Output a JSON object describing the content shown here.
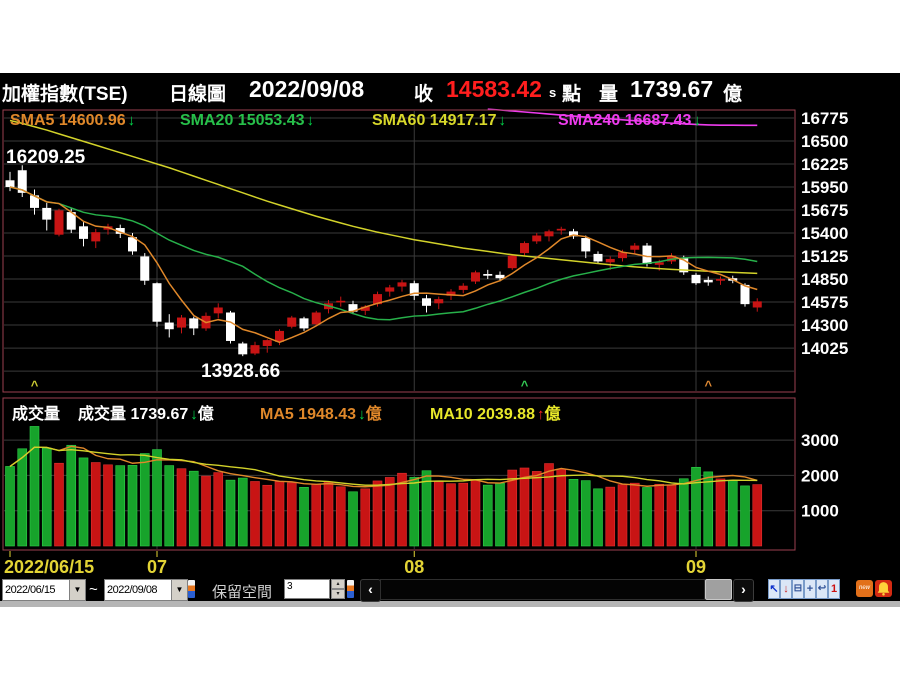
{
  "header": {
    "title": "加權指數(TSE)",
    "chart_type": "日線圖",
    "date": "2022/09/08",
    "close_label": "收",
    "close_value": "14583.42",
    "close_suffix": "s",
    "points_label": "點",
    "volume_label": "量",
    "volume_value": "1739.67",
    "volume_unit": "億"
  },
  "price_legend": {
    "sma5_label": "SMA5 14600.96",
    "sma20_label": "SMA20 15053.43",
    "sma60_label": "SMA60 14917.17",
    "sma240_label": "SMA240 16687.43",
    "down_arrow": "↓"
  },
  "annotations": {
    "period_high": "16209.25",
    "period_low": "13928.66"
  },
  "volume_legend": {
    "pane_title": "成交量",
    "volume_label": "成交量 1739.67",
    "ma5_label": "MA5 1948.43",
    "ma10_label": "MA10 2039.88",
    "unit": "億",
    "down_arrow": "↓",
    "up_arrow": "↑"
  },
  "toolbar": {
    "date_from": "2022/06/15",
    "range_separator": "~",
    "date_to": "2022/09/08",
    "reserve_label": "保留空間",
    "reserve_value": "3",
    "icons": {
      "dropdown": "▼",
      "spin_up": "▴",
      "spin_down": "▾",
      "scroll_left": "‹",
      "scroll_right": "›",
      "cursor": "↖",
      "download": "↓",
      "zoom_out": "⊟",
      "zoom_in": "+",
      "undo": "↩",
      "page_one": "1",
      "new_badge": "new"
    }
  },
  "colors": {
    "up": "#c81414",
    "down_body": "#ffffff",
    "vol_up": "#c81414",
    "vol_down": "#17a32b",
    "sma5": "#e0882a",
    "sma20": "#27b04a",
    "sma60": "#d2d22a",
    "sma240": "#ee3cee",
    "axis_text": "#ffffff",
    "x_label": "#e3d435",
    "pane_border": "#9b4050",
    "grid": "#3a3a3a",
    "close_red": "#ff1e1e",
    "arrow_up": "#ff2222",
    "arrow_down": "#00d84a"
  },
  "chart_data": {
    "type": "candlestick+volume",
    "title": "加權指數(TSE) 日線圖 2022/06/15 ~ 2022/09/08",
    "price_axis": {
      "ticks": [
        16775,
        16500,
        16225,
        15950,
        15675,
        15400,
        15125,
        14850,
        14575,
        14300,
        14025
      ],
      "grid_max": 16775,
      "grid_min": 13750,
      "step": 275
    },
    "volume_axis": {
      "ticks": [
        3000,
        2000,
        1000
      ],
      "unit": "億"
    },
    "x_ticks": [
      {
        "label": "2022/06/15",
        "index": 0
      },
      {
        "label": "07",
        "index": 12
      },
      {
        "label": "08",
        "index": 33
      },
      {
        "label": "09",
        "index": 56
      }
    ],
    "period_high": 16209.25,
    "period_low": 13928.66,
    "candles": [
      [
        16030,
        16130,
        15900,
        15950,
        2254
      ],
      [
        16150,
        16209.25,
        15830,
        15880,
        2754
      ],
      [
        15850,
        15920,
        15620,
        15700,
        3387
      ],
      [
        15700,
        15760,
        15430,
        15560,
        2776
      ],
      [
        15380,
        15690,
        15360,
        15670,
        2345
      ],
      [
        15650,
        15700,
        15400,
        15440,
        2854
      ],
      [
        15480,
        15530,
        15240,
        15330,
        2496
      ],
      [
        15300,
        15450,
        15220,
        15410,
        2365
      ],
      [
        15440,
        15510,
        15380,
        15480,
        2300
      ],
      [
        15460,
        15500,
        15340,
        15390,
        2277
      ],
      [
        15350,
        15400,
        15140,
        15180,
        2285
      ],
      [
        15120,
        15160,
        14780,
        14830,
        2620
      ],
      [
        14800,
        14810,
        14280,
        14340,
        2731
      ],
      [
        14330,
        14430,
        14152,
        14250,
        2278
      ],
      [
        14270,
        14420,
        14200,
        14390,
        2190
      ],
      [
        14380,
        14400,
        14180,
        14260,
        2120
      ],
      [
        14260,
        14450,
        14230,
        14410,
        1980
      ],
      [
        14440,
        14560,
        14380,
        14510,
        2080
      ],
      [
        14450,
        14470,
        14080,
        14110,
        1866
      ],
      [
        14080,
        14100,
        13928.66,
        13950,
        1925
      ],
      [
        13960,
        14100,
        13940,
        14060,
        1828
      ],
      [
        14050,
        14130,
        13970,
        14120,
        1721
      ],
      [
        14100,
        14250,
        14060,
        14230,
        1823
      ],
      [
        14280,
        14410,
        14260,
        14390,
        1789
      ],
      [
        14380,
        14400,
        14230,
        14260,
        1662
      ],
      [
        14310,
        14470,
        14290,
        14450,
        1748
      ],
      [
        14490,
        14600,
        14440,
        14560,
        1812
      ],
      [
        14570,
        14640,
        14520,
        14590,
        1678
      ],
      [
        14550,
        14590,
        14430,
        14460,
        1536
      ],
      [
        14470,
        14540,
        14420,
        14520,
        1620
      ],
      [
        14550,
        14700,
        14520,
        14670,
        1843
      ],
      [
        14700,
        14780,
        14640,
        14750,
        1942
      ],
      [
        14760,
        14840,
        14700,
        14810,
        2062
      ],
      [
        14800,
        14830,
        14600,
        14650,
        1944
      ],
      [
        14620,
        14660,
        14450,
        14530,
        2132
      ],
      [
        14560,
        14640,
        14490,
        14610,
        1828
      ],
      [
        14650,
        14730,
        14600,
        14700,
        1765
      ],
      [
        14720,
        14800,
        14680,
        14770,
        1780
      ],
      [
        14820,
        14950,
        14790,
        14930,
        1862
      ],
      [
        14910,
        14960,
        14850,
        14890,
        1725
      ],
      [
        14900,
        14940,
        14820,
        14860,
        1779
      ],
      [
        14980,
        15150,
        14960,
        15130,
        2152
      ],
      [
        15160,
        15300,
        15120,
        15280,
        2210
      ],
      [
        15300,
        15400,
        15270,
        15370,
        2113
      ],
      [
        15360,
        15440,
        15300,
        15420,
        2336
      ],
      [
        15430,
        15475,
        15380,
        15450,
        2180
      ],
      [
        15420,
        15450,
        15330,
        15360,
        1890
      ],
      [
        15340,
        15370,
        15100,
        15180,
        1852
      ],
      [
        15150,
        15180,
        15030,
        15060,
        1620
      ],
      [
        15050,
        15120,
        14960,
        15090,
        1668
      ],
      [
        15100,
        15200,
        15060,
        15170,
        1738
      ],
      [
        15200,
        15280,
        15150,
        15250,
        1780
      ],
      [
        15250,
        15280,
        15000,
        15030,
        1658
      ],
      [
        15020,
        15080,
        14950,
        15050,
        1749
      ],
      [
        15060,
        15160,
        15030,
        15130,
        1728
      ],
      [
        15100,
        15130,
        14900,
        14930,
        1905
      ],
      [
        14900,
        14920,
        14780,
        14800,
        2230
      ],
      [
        14840,
        14880,
        14770,
        14810,
        2100
      ],
      [
        14830,
        14880,
        14780,
        14850,
        1900
      ],
      [
        14860,
        14890,
        14800,
        14830,
        1850
      ],
      [
        14780,
        14800,
        14520,
        14550,
        1703
      ],
      [
        14510,
        14620,
        14460,
        14583.42,
        1739.67
      ]
    ],
    "sma60": [
      16745,
      16710,
      16670,
      16630,
      16585,
      16540,
      16495,
      16450,
      16405,
      16360,
      16315,
      16270,
      16225,
      16180,
      16130,
      16080,
      16030,
      15980,
      15930,
      15880,
      15830,
      15780,
      15735,
      15690,
      15645,
      15600,
      15560,
      15520,
      15480,
      15445,
      15410,
      15380,
      15350,
      15320,
      15295,
      15270,
      15245,
      15220,
      15200,
      15180,
      15160,
      15140,
      15125,
      15110,
      15095,
      15080,
      15065,
      15050,
      15035,
      15020,
      15008,
      14996,
      14985,
      14975,
      14966,
      14958,
      14950,
      14943,
      14936,
      14929,
      14923,
      14917.17
    ],
    "sma240": [
      null,
      null,
      null,
      null,
      null,
      null,
      null,
      null,
      null,
      null,
      null,
      null,
      null,
      null,
      null,
      null,
      null,
      null,
      null,
      null,
      null,
      null,
      null,
      null,
      null,
      null,
      null,
      null,
      null,
      null,
      null,
      null,
      null,
      null,
      null,
      null,
      null,
      null,
      null,
      16880,
      16870,
      16858,
      16846,
      16834,
      16822,
      16810,
      16798,
      16786,
      16775,
      16764,
      16753,
      16742,
      16732,
      16722,
      16713,
      16705,
      16698,
      16692,
      16688,
      16688,
      16687.5,
      16687.43
    ],
    "markers": [
      {
        "index": 2,
        "glyph": "^",
        "color": "#cccc33"
      },
      {
        "index": 42,
        "glyph": "^",
        "color": "#33cc55"
      },
      {
        "index": 57,
        "glyph": "^",
        "color": "#dd8833"
      }
    ]
  }
}
